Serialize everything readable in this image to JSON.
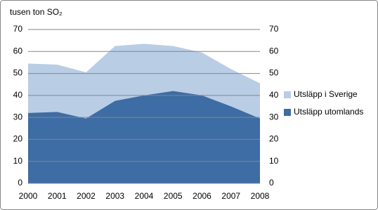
{
  "chart_data": {
    "type": "area",
    "y_label": "tusen ton SO₂",
    "categories": [
      "2000",
      "2001",
      "2002",
      "2003",
      "2004",
      "2005",
      "2006",
      "2007",
      "2008"
    ],
    "series": [
      {
        "name": "Utsläpp i Sverige",
        "color": "#b9cde5",
        "values": [
          54.5,
          54,
          50.5,
          62.5,
          63.5,
          62.5,
          59.5,
          52,
          45.5
        ]
      },
      {
        "name": "Utsläpp utomlands",
        "color": "#3e6ca4",
        "values": [
          32,
          32.5,
          29.5,
          37.5,
          40,
          42,
          40,
          35,
          29.5
        ]
      }
    ],
    "ylim": [
      0,
      70
    ],
    "yticks": [
      0,
      10,
      20,
      30,
      40,
      50,
      60,
      70
    ],
    "y2lim": [
      0,
      70
    ],
    "y2ticks": [
      0,
      10,
      20,
      30,
      40,
      50,
      60,
      70
    ],
    "grid": true,
    "legend": "right"
  }
}
